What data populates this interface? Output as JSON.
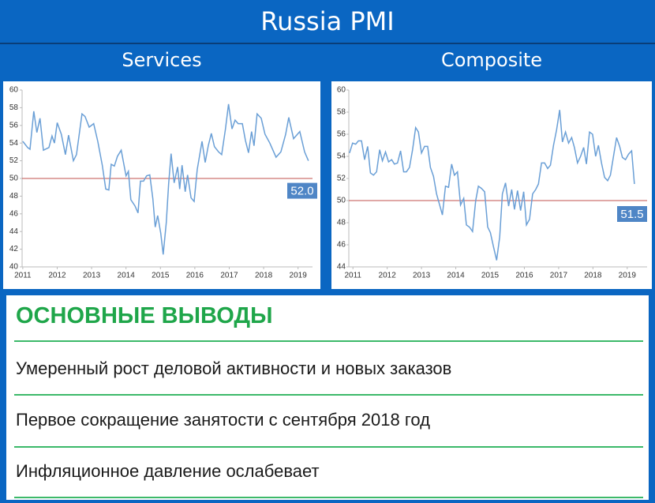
{
  "header": {
    "title": "Russia PMI"
  },
  "chart_data": [
    {
      "type": "line",
      "title": "Services",
      "color": "#6a9fd6",
      "x": [
        2011.0,
        2011.14,
        2011.21,
        2011.32,
        2011.41,
        2011.5,
        2011.6,
        2011.76,
        2011.85,
        2011.92,
        2012.0,
        2012.12,
        2012.24,
        2012.33,
        2012.47,
        2012.56,
        2012.72,
        2012.81,
        2012.93,
        2013.06,
        2013.18,
        2013.31,
        2013.41,
        2013.5,
        2013.57,
        2013.66,
        2013.75,
        2013.86,
        2014.0,
        2014.07,
        2014.14,
        2014.26,
        2014.35,
        2014.42,
        2014.51,
        2014.6,
        2014.69,
        2014.78,
        2014.85,
        2014.92,
        2015.01,
        2015.08,
        2015.17,
        2015.24,
        2015.31,
        2015.4,
        2015.5,
        2015.56,
        2015.63,
        2015.72,
        2015.79,
        2015.89,
        2015.98,
        2016.07,
        2016.21,
        2016.3,
        2016.39,
        2016.48,
        2016.57,
        2016.69,
        2016.78,
        2016.89,
        2016.98,
        2017.08,
        2017.17,
        2017.26,
        2017.38,
        2017.47,
        2017.56,
        2017.65,
        2017.72,
        2017.81,
        2017.93,
        2018.04,
        2018.18,
        2018.36,
        2018.5,
        2018.64,
        2018.73,
        2018.87,
        2019.05,
        2019.19,
        2019.3
      ],
      "values": [
        54.2,
        53.5,
        53.3,
        57.6,
        55.2,
        56.8,
        53.2,
        53.5,
        54.8,
        54.0,
        56.3,
        55.0,
        52.7,
        54.9,
        52.0,
        52.7,
        57.3,
        57.0,
        55.8,
        56.2,
        54.2,
        51.5,
        48.8,
        48.7,
        51.6,
        51.4,
        52.5,
        53.2,
        50.3,
        50.8,
        47.6,
        46.9,
        46.1,
        49.7,
        49.7,
        50.3,
        50.4,
        47.7,
        44.5,
        45.8,
        43.8,
        41.4,
        45.0,
        49.4,
        52.8,
        49.5,
        51.3,
        48.8,
        51.5,
        48.5,
        50.4,
        47.8,
        47.4,
        51.0,
        54.2,
        51.8,
        53.7,
        55.1,
        53.6,
        53.0,
        52.7,
        55.6,
        58.4,
        55.6,
        56.6,
        56.2,
        56.2,
        54.3,
        52.9,
        55.3,
        53.7,
        57.3,
        56.8,
        55.0,
        54.0,
        52.4,
        53.0,
        55.0,
        56.9,
        54.5,
        55.3,
        53.0,
        52.0
      ],
      "xlim": [
        2010.98,
        2019.42
      ],
      "xticks": [
        2011,
        2012,
        2013,
        2014,
        2015,
        2016,
        2017,
        2018,
        2019
      ],
      "ylim": [
        40,
        60
      ],
      "yticks": [
        40,
        42,
        44,
        46,
        48,
        50,
        52,
        54,
        56,
        58,
        60
      ],
      "reference_line": 50,
      "reference_color": "#c0504d",
      "annotation": "52.0"
    },
    {
      "type": "line",
      "title": "Composite",
      "color": "#6a9fd6",
      "x": [
        2010.9,
        2010.99,
        2011.08,
        2011.16,
        2011.25,
        2011.34,
        2011.43,
        2011.51,
        2011.6,
        2011.69,
        2011.78,
        2011.86,
        2011.95,
        2012.04,
        2012.13,
        2012.21,
        2012.3,
        2012.39,
        2012.48,
        2012.56,
        2012.65,
        2012.74,
        2012.83,
        2012.91,
        2013.0,
        2013.09,
        2013.18,
        2013.26,
        2013.35,
        2013.44,
        2013.53,
        2013.61,
        2013.7,
        2013.79,
        2013.88,
        2013.96,
        2014.05,
        2014.14,
        2014.23,
        2014.31,
        2014.4,
        2014.49,
        2014.58,
        2014.66,
        2014.75,
        2014.84,
        2014.93,
        2015.01,
        2015.1,
        2015.19,
        2015.28,
        2015.36,
        2015.45,
        2015.54,
        2015.63,
        2015.71,
        2015.8,
        2015.89,
        2015.98,
        2016.06,
        2016.15,
        2016.24,
        2016.33,
        2016.41,
        2016.5,
        2016.59,
        2016.68,
        2016.76,
        2016.85,
        2016.94,
        2017.03,
        2017.11,
        2017.2,
        2017.29,
        2017.38,
        2017.46,
        2017.55,
        2017.64,
        2017.73,
        2017.81,
        2017.9,
        2017.99,
        2018.08,
        2018.16,
        2018.25,
        2018.34,
        2018.43,
        2018.51,
        2018.6,
        2018.69,
        2018.78,
        2018.86,
        2018.95,
        2019.04,
        2019.13,
        2019.21
      ],
      "values": [
        54.3,
        55.2,
        55.1,
        55.4,
        55.4,
        53.7,
        54.9,
        52.5,
        52.3,
        52.6,
        54.6,
        53.6,
        54.4,
        53.5,
        53.7,
        53.3,
        53.4,
        54.5,
        52.6,
        52.6,
        53.0,
        54.6,
        56.6,
        56.2,
        54.3,
        54.9,
        54.9,
        53.0,
        52.2,
        50.6,
        49.6,
        48.7,
        51.3,
        51.2,
        53.3,
        52.3,
        52.6,
        49.6,
        50.2,
        47.8,
        47.6,
        47.2,
        50.0,
        51.3,
        51.1,
        50.8,
        47.6,
        47.1,
        45.8,
        44.6,
        46.7,
        50.6,
        51.6,
        49.5,
        51.0,
        49.2,
        50.9,
        49.1,
        50.8,
        47.8,
        48.3,
        50.6,
        51.0,
        51.5,
        53.4,
        53.4,
        52.9,
        53.2,
        55.0,
        56.4,
        58.2,
        55.3,
        56.2,
        55.2,
        55.7,
        54.8,
        53.4,
        54.0,
        54.8,
        53.3,
        56.2,
        56.0,
        54.0,
        55.0,
        53.4,
        52.1,
        51.8,
        52.3,
        54.0,
        55.7,
        54.9,
        53.9,
        53.7,
        54.2,
        54.5,
        51.5
      ],
      "xlim": [
        2010.88,
        2019.58
      ],
      "xticks": [
        2011,
        2012,
        2013,
        2014,
        2015,
        2016,
        2017,
        2018,
        2019
      ],
      "ylim": [
        44,
        60
      ],
      "yticks": [
        44,
        46,
        48,
        50,
        52,
        54,
        56,
        58,
        60
      ],
      "reference_line": 50,
      "reference_color": "#c0504d",
      "annotation": "51.5"
    }
  ],
  "findings": {
    "title": "ОСНОВНЫЕ ВЫВОДЫ",
    "items": [
      "Умеренный рост деловой активности и новых заказов",
      "Первое сокращение занятости с сентября 2018 год",
      "Инфляционное давление ослабевает"
    ]
  }
}
